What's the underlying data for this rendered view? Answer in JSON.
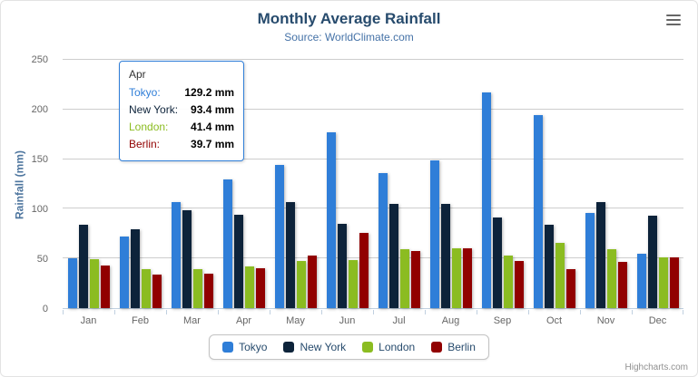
{
  "title": "Monthly Average Rainfall",
  "subtitle": "Source: WorldClimate.com",
  "y_axis_title": "Rainfall (mm)",
  "credits": "Highcharts.com",
  "icons": {
    "context_menu": "hamburger-icon"
  },
  "tooltip": {
    "header": "Apr",
    "rows": [
      {
        "name": "Tokyo:",
        "value": "129.2 mm",
        "color": "#2f7ed8"
      },
      {
        "name": "New York:",
        "value": "93.4 mm",
        "color": "#0d233a"
      },
      {
        "name": "London:",
        "value": "41.4 mm",
        "color": "#8bbc21"
      },
      {
        "name": "Berlin:",
        "value": "39.7 mm",
        "color": "#910000"
      }
    ]
  },
  "chart_data": {
    "type": "bar",
    "title": "Monthly Average Rainfall",
    "subtitle": "Source: WorldClimate.com",
    "xlabel": "",
    "ylabel": "Rainfall (mm)",
    "ylim": [
      0,
      250
    ],
    "yticks": [
      0,
      50,
      100,
      150,
      200,
      250
    ],
    "grid": true,
    "legend_position": "bottom",
    "categories": [
      "Jan",
      "Feb",
      "Mar",
      "Apr",
      "May",
      "Jun",
      "Jul",
      "Aug",
      "Sep",
      "Oct",
      "Nov",
      "Dec"
    ],
    "series": [
      {
        "name": "Tokyo",
        "color": "#2f7ed8",
        "values": [
          49.9,
          71.5,
          106.4,
          129.2,
          144.0,
          176.0,
          135.6,
          148.5,
          216.4,
          194.1,
          95.6,
          54.4
        ]
      },
      {
        "name": "New York",
        "color": "#0d233a",
        "values": [
          83.6,
          78.8,
          98.5,
          93.4,
          106.0,
          84.5,
          105.0,
          104.3,
          91.2,
          83.5,
          106.6,
          92.3
        ]
      },
      {
        "name": "London",
        "color": "#8bbc21",
        "values": [
          48.9,
          38.8,
          39.3,
          41.4,
          47.0,
          48.3,
          59.0,
          59.6,
          52.4,
          65.2,
          59.3,
          51.2
        ]
      },
      {
        "name": "Berlin",
        "color": "#910000",
        "values": [
          42.4,
          33.2,
          34.5,
          39.7,
          52.6,
          75.5,
          57.4,
          60.4,
          47.6,
          39.1,
          46.8,
          51.1
        ]
      }
    ]
  }
}
